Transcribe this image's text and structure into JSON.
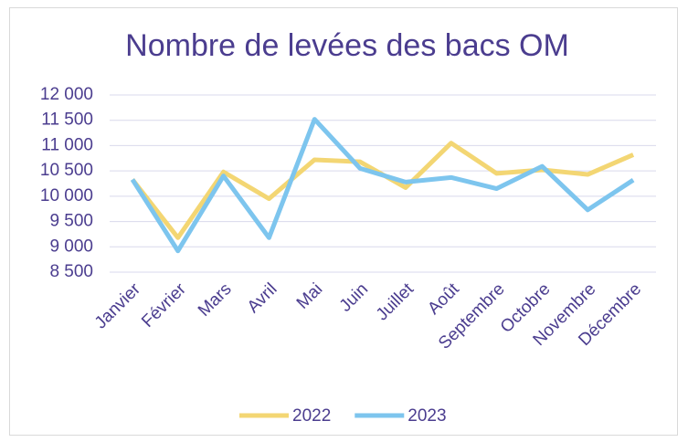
{
  "chart_data": {
    "type": "line",
    "title": "Nombre de levées des bacs OM",
    "categories": [
      "Janvier",
      "Février",
      "Mars",
      "Avril",
      "Mai",
      "Juin",
      "Juillet",
      "Août",
      "Septembre",
      "Octobre",
      "Novembre",
      "Décembre"
    ],
    "series": [
      {
        "name": "2022",
        "color": "#f3d673",
        "values": [
          10330,
          9180,
          10480,
          9950,
          10720,
          10680,
          10170,
          11050,
          10450,
          10520,
          10430,
          10820
        ]
      },
      {
        "name": "2023",
        "color": "#7dc5ee",
        "values": [
          10330,
          8920,
          10400,
          9180,
          11520,
          10550,
          10280,
          10370,
          10150,
          10590,
          9730,
          10320
        ]
      }
    ],
    "ylim": [
      8500,
      12000
    ],
    "yticks": [
      {
        "value": 8500,
        "label": "8 500"
      },
      {
        "value": 9000,
        "label": "9 000"
      },
      {
        "value": 9500,
        "label": "9 500"
      },
      {
        "value": 10000,
        "label": "10 000"
      },
      {
        "value": 10500,
        "label": "10 500"
      },
      {
        "value": 11000,
        "label": "11 000"
      },
      {
        "value": 11500,
        "label": "11 500"
      },
      {
        "value": 12000,
        "label": "12 000"
      }
    ],
    "grid": true,
    "legend": "bottom"
  }
}
